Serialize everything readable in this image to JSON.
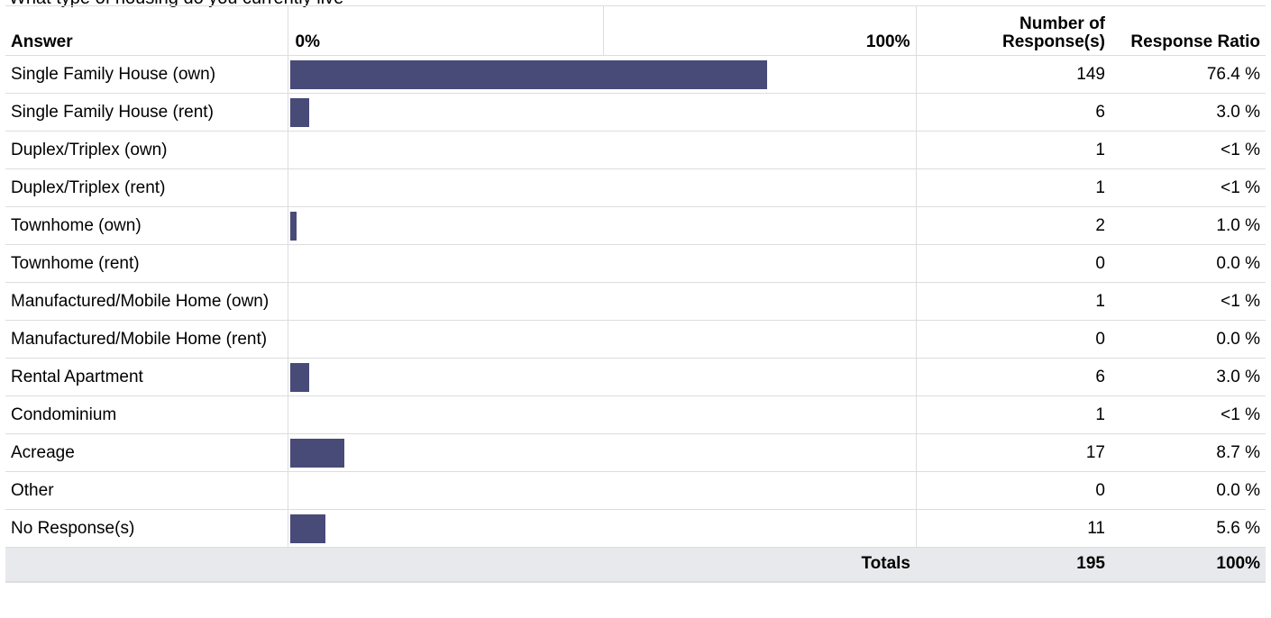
{
  "question": "What type of housing do you currently live",
  "header": {
    "answer": "Answer",
    "scale_min": "0%",
    "scale_max": "100%",
    "count": "Number of Response(s)",
    "ratio": "Response Ratio"
  },
  "rows": [
    {
      "answer": "Single Family House (own)",
      "count": "149",
      "ratio": "76.4 %",
      "pct": 76.4
    },
    {
      "answer": "Single Family House (rent)",
      "count": "6",
      "ratio": "3.0 %",
      "pct": 3.0
    },
    {
      "answer": "Duplex/Triplex (own)",
      "count": "1",
      "ratio": "<1 %",
      "pct": 0.5
    },
    {
      "answer": "Duplex/Triplex (rent)",
      "count": "1",
      "ratio": "<1 %",
      "pct": 0.5
    },
    {
      "answer": "Townhome (own)",
      "count": "2",
      "ratio": "1.0 %",
      "pct": 1.0
    },
    {
      "answer": "Townhome (rent)",
      "count": "0",
      "ratio": "0.0 %",
      "pct": 0.0
    },
    {
      "answer": "Manufactured/Mobile Home (own)",
      "count": "1",
      "ratio": "<1 %",
      "pct": 0.5
    },
    {
      "answer": "Manufactured/Mobile Home (rent)",
      "count": "0",
      "ratio": "0.0 %",
      "pct": 0.0
    },
    {
      "answer": "Rental Apartment",
      "count": "6",
      "ratio": "3.0 %",
      "pct": 3.0
    },
    {
      "answer": "Condominium",
      "count": "1",
      "ratio": "<1 %",
      "pct": 0.5
    },
    {
      "answer": "Acreage",
      "count": "17",
      "ratio": "8.7 %",
      "pct": 8.7
    },
    {
      "answer": "Other",
      "count": "0",
      "ratio": "0.0 %",
      "pct": 0.0
    },
    {
      "answer": "No Response(s)",
      "count": "11",
      "ratio": "5.6 %",
      "pct": 5.6
    }
  ],
  "totals": {
    "label": "Totals",
    "count": "195",
    "ratio": "100%"
  },
  "colors": {
    "bar": "#484a78",
    "totals_bg": "#e8e9ed",
    "grid": "#dddddd"
  }
}
